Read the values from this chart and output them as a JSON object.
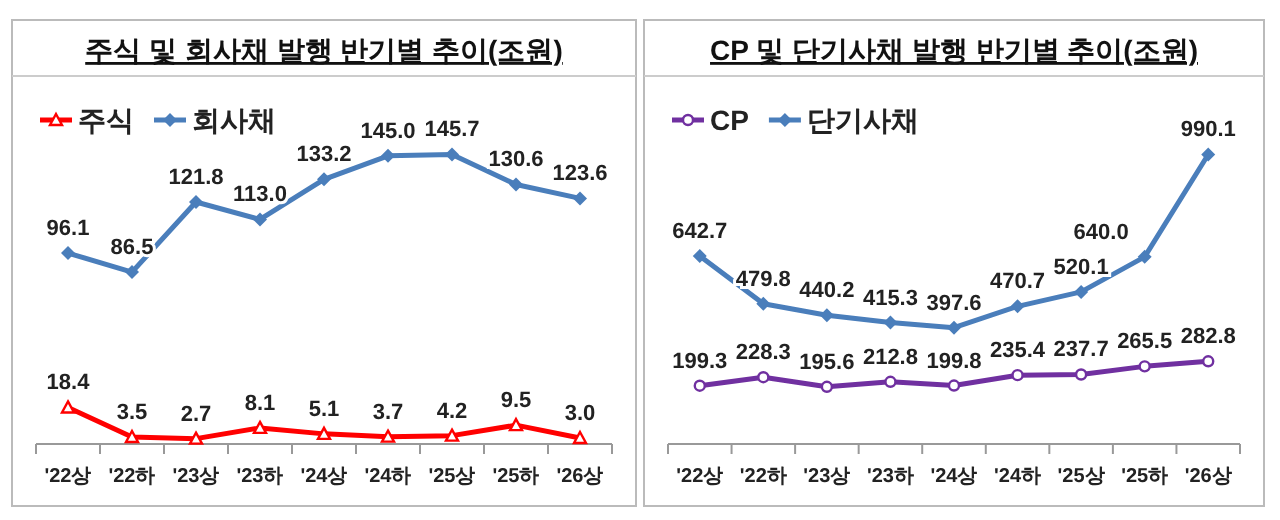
{
  "chart_data": [
    {
      "type": "line",
      "title": "주식 및 회사채 발행 반기별 추이(조원)",
      "categories": [
        "'22상",
        "'22하",
        "'23상",
        "'23하",
        "'24상",
        "'24하",
        "'25상",
        "'25하",
        "'26상"
      ],
      "legend": "top left",
      "series": [
        {
          "name": "주식",
          "color": "#ff0000",
          "marker": "triangle",
          "values": [
            18.4,
            3.5,
            2.7,
            8.1,
            5.1,
            3.7,
            4.2,
            9.5,
            3.0
          ],
          "value_labels": [
            "18.4",
            "3.5",
            "2.7",
            "8.1",
            "5.1",
            "3.7",
            "4.2",
            "9.5",
            "3.0"
          ]
        },
        {
          "name": "회사채",
          "color": "#4a7ebb",
          "marker": "diamond",
          "values": [
            96.1,
            86.5,
            121.8,
            113.0,
            133.2,
            145.0,
            145.7,
            130.6,
            123.6
          ],
          "value_labels": [
            "96.1",
            "86.5",
            "121.8",
            "113.0",
            "133.2",
            "145.0",
            "145.7",
            "130.6",
            "123.6"
          ]
        }
      ]
    },
    {
      "type": "line",
      "title": "CP 및 단기사채 발행 반기별 추이(조원)",
      "categories": [
        "'22상",
        "'22하",
        "'23상",
        "'23하",
        "'24상",
        "'24하",
        "'25상",
        "'25하",
        "'26상"
      ],
      "legend": "top left",
      "series": [
        {
          "name": "CP",
          "color": "#7030a0",
          "marker": "circle",
          "values": [
            199.3,
            228.3,
            195.6,
            212.8,
            199.8,
            235.4,
            237.7,
            265.5,
            282.8
          ],
          "value_labels": [
            "199.3",
            "228.3",
            "195.6",
            "212.8",
            "199.8",
            "235.4",
            "237.7",
            "265.5",
            "282.8"
          ]
        },
        {
          "name": "단기사채",
          "color": "#4a7ebb",
          "marker": "diamond",
          "values": [
            642.7,
            479.8,
            440.2,
            415.3,
            397.6,
            470.7,
            520.1,
            640.0,
            990.1
          ],
          "value_labels": [
            "642.7",
            "479.8",
            "440.2",
            "415.3",
            "397.6",
            "470.7",
            "520.1",
            "640.0",
            "990.1"
          ]
        }
      ]
    }
  ]
}
